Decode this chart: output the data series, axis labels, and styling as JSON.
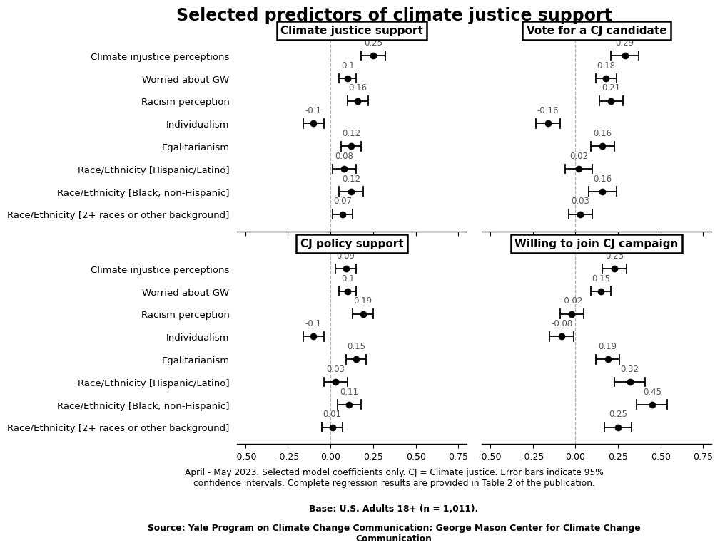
{
  "title": "Selected predictors of climate justice support",
  "predictors": [
    "Climate injustice perceptions",
    "Worried about GW",
    "Racism perception",
    "Individualism",
    "Egalitarianism",
    "Race/Ethnicity [Hispanic/Latino]",
    "Race/Ethnicity [Black, non-Hispanic]",
    "Race/Ethnicity [2+ races or other background]"
  ],
  "panels": [
    {
      "title": "Climate justice support",
      "coefs": [
        0.25,
        0.1,
        0.16,
        -0.1,
        0.12,
        0.08,
        0.12,
        0.07
      ],
      "ci_low": [
        0.18,
        0.05,
        0.1,
        -0.16,
        0.06,
        0.01,
        0.05,
        0.01
      ],
      "ci_high": [
        0.32,
        0.15,
        0.22,
        -0.04,
        0.18,
        0.15,
        0.19,
        0.13
      ]
    },
    {
      "title": "Vote for a CJ candidate",
      "coefs": [
        0.29,
        0.18,
        0.21,
        -0.16,
        0.16,
        0.02,
        0.16,
        0.03
      ],
      "ci_low": [
        0.21,
        0.12,
        0.14,
        -0.23,
        0.09,
        -0.06,
        0.08,
        -0.04
      ],
      "ci_high": [
        0.37,
        0.24,
        0.28,
        -0.09,
        0.23,
        0.1,
        0.24,
        0.1
      ]
    },
    {
      "title": "CJ policy support",
      "coefs": [
        0.09,
        0.1,
        0.19,
        -0.1,
        0.15,
        0.03,
        0.11,
        0.01
      ],
      "ci_low": [
        0.03,
        0.05,
        0.13,
        -0.16,
        0.09,
        -0.04,
        0.04,
        -0.05
      ],
      "ci_high": [
        0.15,
        0.15,
        0.25,
        -0.04,
        0.21,
        0.1,
        0.18,
        0.07
      ]
    },
    {
      "title": "Willing to join CJ campaign",
      "coefs": [
        0.23,
        0.15,
        -0.02,
        -0.08,
        0.19,
        0.32,
        0.45,
        0.25
      ],
      "ci_low": [
        0.16,
        0.09,
        -0.09,
        -0.15,
        0.12,
        0.23,
        0.36,
        0.17
      ],
      "ci_high": [
        0.3,
        0.21,
        0.05,
        -0.01,
        0.26,
        0.41,
        0.54,
        0.33
      ]
    }
  ],
  "xlim": [
    -0.55,
    0.8
  ],
  "xticks": [
    -0.5,
    -0.25,
    0.0,
    0.25,
    0.5,
    0.75
  ],
  "xticklabels": [
    "-0.50",
    "-0.25",
    "0.00",
    "0.25",
    "0.50",
    "0.75"
  ],
  "coef_labels": [
    [
      "0.25",
      "0.1",
      "0.16",
      "-0.1",
      "0.12",
      "0.08",
      "0.12",
      "0.07"
    ],
    [
      "0.29",
      "0.18",
      "0.21",
      "-0.16",
      "0.16",
      "0.02",
      "0.16",
      "0.03"
    ],
    [
      "0.09",
      "0.1",
      "0.19",
      "-0.1",
      "0.15",
      "0.03",
      "0.11",
      "0.01"
    ],
    [
      "0.23",
      "0.15",
      "-0.02",
      "-0.08",
      "0.19",
      "0.32",
      "0.45",
      "0.25"
    ]
  ],
  "footnote1": "April - May 2023. Selected model coefficients only. CJ = Climate justice. Error bars indicate 95%",
  "footnote1b": "confidence intervals. Complete regression results are provided in Table 2 of the publication.",
  "footnote2": "Base: U.S. Adults 18+ (n = 1,011).",
  "footnote3": "Source: Yale Program on Climate Change Communication; George Mason Center for Climate Change",
  "footnote3b": "Communication",
  "dot_color": "#000000",
  "line_color": "#000000",
  "bg_color": "#ffffff",
  "vline_color": "#b0b0b0",
  "title_fontsize": 17,
  "label_fontsize": 9.5,
  "coef_fontsize": 8.5,
  "panel_title_fontsize": 11,
  "tick_fontsize": 9,
  "footnote_fontsize": 8.8
}
